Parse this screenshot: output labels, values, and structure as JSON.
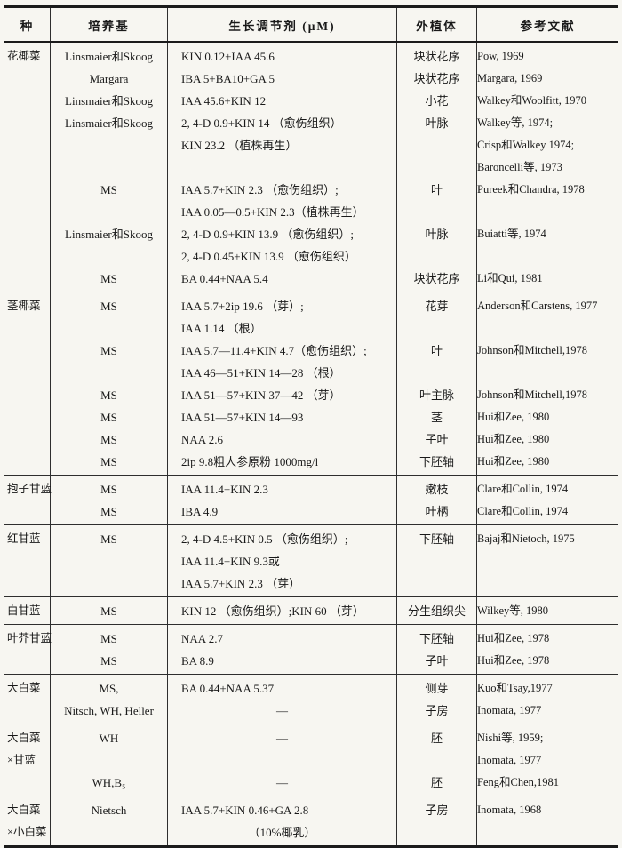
{
  "header": {
    "columns": [
      "种",
      "培养基",
      "生长调节剂 (μM)",
      "外植体",
      "参考文献"
    ]
  },
  "colors": {
    "paper": "#f7f6f1",
    "ink": "#191919",
    "rule": "#2e2e2e"
  },
  "sections": [
    {
      "species": [
        "花椰菜"
      ],
      "entries": [
        {
          "medium": "Linsmaier和Skoog",
          "regulators": [
            "KIN 0.12+IAA 45.6"
          ],
          "explant": "块状花序",
          "refs": [
            "Pow, 1969"
          ]
        },
        {
          "medium": "Margara",
          "regulators": [
            "IBA 5+BA10+GA 5"
          ],
          "explant": "块状花序",
          "refs": [
            "Margara, 1969"
          ]
        },
        {
          "medium": "Linsmaier和Skoog",
          "regulators": [
            "IAA 45.6+KIN 12"
          ],
          "explant": "小花",
          "refs": [
            "Walkey和Woolfitt, 1970"
          ]
        },
        {
          "medium": "Linsmaier和Skoog",
          "regulators": [
            "2, 4-D 0.9+KIN 14 （愈伤组织）",
            "KIN 23.2 （植株再生）"
          ],
          "explant": "叶脉",
          "refs": [
            "Walkey等, 1974;",
            "Crisp和Walkey 1974;",
            "Baroncelli等, 1973"
          ]
        },
        {
          "medium": "MS",
          "regulators": [
            "IAA 5.7+KIN 2.3 （愈伤组织）;",
            "IAA 0.05—0.5+KIN 2.3（植株再生）"
          ],
          "explant": "叶",
          "refs": [
            "Pureek和Chandra, 1978"
          ]
        },
        {
          "medium": "Linsmaier和Skoog",
          "regulators": [
            "2, 4-D 0.9+KIN 13.9 （愈伤组织）;",
            "2, 4-D 0.45+KIN 13.9 （愈伤组织）"
          ],
          "explant": "叶脉",
          "refs": [
            "Buiatti等, 1974"
          ]
        },
        {
          "medium": "MS",
          "regulators": [
            "BA 0.44+NAA 5.4"
          ],
          "explant": "块状花序",
          "refs": [
            "Li和Qui, 1981"
          ]
        }
      ]
    },
    {
      "species": [
        "茎椰菜"
      ],
      "entries": [
        {
          "medium": "MS",
          "regulators": [
            "IAA 5.7+2ip 19.6 （芽）;",
            "IAA 1.14 （根）"
          ],
          "explant": "花芽",
          "refs": [
            "Anderson和Carstens, 1977"
          ]
        },
        {
          "medium": "MS",
          "regulators": [
            "IAA 5.7—11.4+KIN 4.7（愈伤组织）;",
            "IAA 46—51+KIN 14—28 （根）"
          ],
          "explant": "叶",
          "refs": [
            "Johnson和Mitchell,1978"
          ]
        },
        {
          "medium": "MS",
          "regulators": [
            "IAA 51—57+KIN 37—42 （芽）"
          ],
          "explant": "叶主脉",
          "refs": [
            "Johnson和Mitchell,1978"
          ]
        },
        {
          "medium": "MS",
          "regulators": [
            "IAA 51—57+KIN 14—93"
          ],
          "explant": "茎",
          "refs": [
            "Hui和Zee, 1980"
          ]
        },
        {
          "medium": "MS",
          "regulators": [
            "NAA 2.6"
          ],
          "explant": "子叶",
          "refs": [
            "Hui和Zee, 1980"
          ]
        },
        {
          "medium": "MS",
          "regulators": [
            "2ip 9.8粗人参原粉 1000mg/l"
          ],
          "explant": "下胚轴",
          "refs": [
            "Hui和Zee, 1980"
          ]
        }
      ]
    },
    {
      "species": [
        "抱子甘蓝"
      ],
      "entries": [
        {
          "medium": "MS",
          "regulators": [
            "IAA 11.4+KIN 2.3"
          ],
          "explant": "嫩枝",
          "refs": [
            "Clare和Collin, 1974"
          ]
        },
        {
          "medium": "MS",
          "regulators": [
            "IBA 4.9"
          ],
          "explant": "叶柄",
          "refs": [
            "Clare和Collin, 1974"
          ]
        }
      ]
    },
    {
      "species": [
        "红甘蓝"
      ],
      "entries": [
        {
          "medium": "MS",
          "regulators": [
            "2, 4-D 4.5+KIN 0.5 （愈伤组织）;",
            "IAA 11.4+KIN 9.3或",
            "IAA 5.7+KIN 2.3 （芽）"
          ],
          "explant": "下胚轴",
          "refs": [
            "Bajaj和Nietoch, 1975"
          ]
        }
      ]
    },
    {
      "species": [
        "白甘蓝"
      ],
      "entries": [
        {
          "medium": "MS",
          "regulators": [
            "KIN 12 （愈伤组织）;KIN 60 （芽）"
          ],
          "explant": "分生组织尖",
          "refs": [
            "Wilkey等, 1980"
          ]
        }
      ]
    },
    {
      "species": [
        "叶芥甘蓝"
      ],
      "entries": [
        {
          "medium": "MS",
          "regulators": [
            "NAA 2.7"
          ],
          "explant": "下胚轴",
          "refs": [
            "Hui和Zee, 1978"
          ]
        },
        {
          "medium": "MS",
          "regulators": [
            "BA 8.9"
          ],
          "explant": "子叶",
          "refs": [
            "Hui和Zee, 1978"
          ]
        }
      ]
    },
    {
      "species": [
        "大白菜"
      ],
      "entries": [
        {
          "medium": "MS,",
          "regulators": [
            "BA 0.44+NAA 5.37"
          ],
          "explant": "侧芽",
          "refs": [
            "Kuo和Tsay,1977"
          ]
        },
        {
          "medium": "Nitsch, WH, Heller",
          "regulators": [
            {
              "t": "—",
              "center": true
            }
          ],
          "explant": "子房",
          "refs": [
            "Inomata, 1977"
          ]
        }
      ]
    },
    {
      "species": [
        "大白菜",
        "×甘蓝"
      ],
      "entries": [
        {
          "medium": "WH",
          "regulators": [
            {
              "t": "—",
              "center": true
            }
          ],
          "explant": "胚",
          "refs": [
            "Nishi等, 1959;",
            "Inomata, 1977"
          ]
        },
        {
          "medium": "WH,B₅",
          "regulators": [
            {
              "t": "—",
              "center": true
            }
          ],
          "explant": "胚",
          "refs": [
            "Feng和Chen,1981"
          ]
        }
      ]
    },
    {
      "species": [
        "大白菜",
        "×小白菜"
      ],
      "entries": [
        {
          "medium": "Nietsch",
          "regulators": [
            "IAA 5.7+KIN 0.46+GA 2.8",
            {
              "t": "（10%椰乳）",
              "center": true
            }
          ],
          "explant": "子房",
          "refs": [
            "Inomata, 1968"
          ]
        }
      ]
    }
  ]
}
